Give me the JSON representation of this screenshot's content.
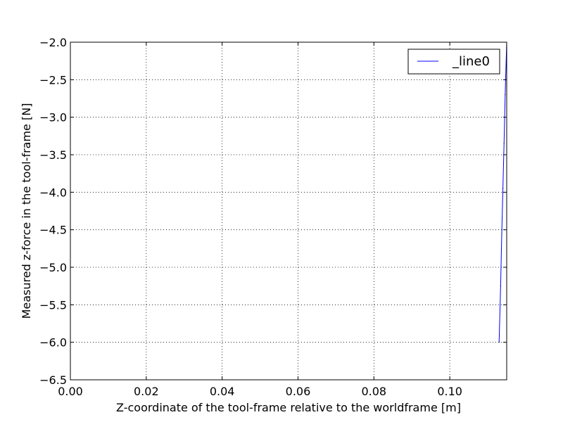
{
  "chart_data": {
    "type": "line",
    "xlabel": "Z-coordinate of the tool-frame relative to the worldframe [m]",
    "ylabel": "Measured z-force in the tool-frame [N]",
    "xlim": [
      0.0,
      0.115
    ],
    "ylim": [
      -6.5,
      -2.0
    ],
    "xticks": [
      0.0,
      0.02,
      0.04,
      0.06,
      0.08,
      0.1
    ],
    "xtick_labels": [
      "0.00",
      "0.02",
      "0.04",
      "0.06",
      "0.08",
      "0.10"
    ],
    "yticks": [
      -2.0,
      -2.5,
      -3.0,
      -3.5,
      -4.0,
      -4.5,
      -5.0,
      -5.5,
      -6.0,
      -6.5
    ],
    "ytick_labels": [
      "−2.0",
      "−2.5",
      "−3.0",
      "−3.5",
      "−4.0",
      "−4.5",
      "−5.0",
      "−5.5",
      "−6.0",
      "−6.5"
    ],
    "grid": true,
    "legend_position": "top-right",
    "series": [
      {
        "name": "_line0",
        "color": "#0000ff",
        "x": [
          0.113,
          0.1134,
          0.1137,
          0.114,
          0.1143,
          0.1146,
          0.115
        ],
        "y": [
          -6.0,
          -5.25,
          -4.55,
          -3.95,
          -3.35,
          -2.7,
          -2.0
        ]
      }
    ]
  }
}
